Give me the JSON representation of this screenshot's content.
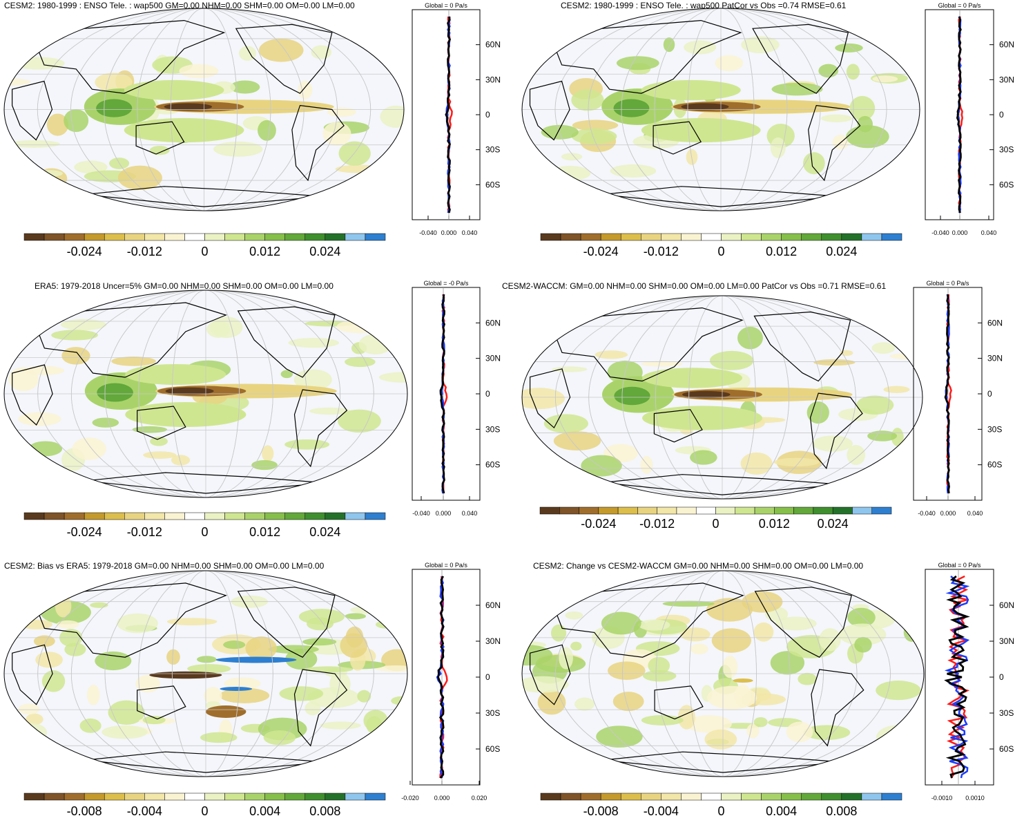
{
  "panels": [
    {
      "id": "p1",
      "title": "CESM2: 1980-1999 : ENSO Tele. : wap500 GM=0.00 NHM=0.00 SHM=0.00 OM=0.00 LM=0.00",
      "colorbar_labels": [
        "-0.024",
        "-0.012",
        "0",
        "0.012",
        "0.024"
      ],
      "side_title": "Global = 0 Pa/s",
      "lat_labels": [
        "60N",
        "30N",
        "0",
        "30S",
        "60S"
      ],
      "x_tick_labels": [
        "-0.040",
        "0.000",
        "0.040"
      ]
    },
    {
      "id": "p2",
      "title": "CESM2: 1980-1999 : ENSO Tele. : wap500 PatCor vs Obs =0.74 RMSE=0.61",
      "colorbar_labels": [
        "-0.024",
        "-0.012",
        "0",
        "0.012",
        "0.024"
      ],
      "side_title": "Global = 0 Pa/s",
      "lat_labels": [
        "60N",
        "30N",
        "0",
        "30S",
        "60S"
      ],
      "x_tick_labels": [
        "-0.040",
        "0.000",
        "0.040"
      ]
    },
    {
      "id": "p3",
      "title": "ERA5: 1979-2018 Uncer=5% GM=0.00 NHM=0.00 SHM=0.00 OM=0.00 LM=0.00",
      "colorbar_labels": [
        "-0.024",
        "-0.012",
        "0",
        "0.012",
        "0.024"
      ],
      "side_title": "Global = -0 Pa/s",
      "lat_labels": [
        "60N",
        "30N",
        "0",
        "30S",
        "60S"
      ],
      "x_tick_labels": [
        "-0.040",
        "0.000",
        "0.040"
      ]
    },
    {
      "id": "p4",
      "title": "CESM2-WACCM: GM=0.00 NHM=0.00 SHM=0.00 OM=0.00 LM=0.00 PatCor vs Obs =0.71 RMSE=0.61",
      "colorbar_labels": [
        "-0.024",
        "-0.012",
        "0",
        "0.012",
        "0.024"
      ],
      "side_title": "Global = 0 Pa/s",
      "lat_labels": [
        "60N",
        "30N",
        "0",
        "30S",
        "60S"
      ],
      "x_tick_labels": [
        "-0.040",
        "0.000",
        "0.040"
      ]
    },
    {
      "id": "p5",
      "title": "CESM2: Bias vs ERA5: 1979-2018 GM=0.00 NHM=0.00 SHM=0.00 OM=0.00 LM=0.00",
      "colorbar_labels": [
        "-0.008",
        "-0.004",
        "0",
        "0.004",
        "0.008"
      ],
      "side_title": "Global = 0 Pa/s",
      "lat_labels": [
        "60N",
        "30N",
        "0",
        "30S",
        "60S"
      ],
      "x_tick_labels": [
        "-0.020",
        "0.000",
        "0.020"
      ]
    },
    {
      "id": "p6",
      "title": "CESM2: Change vs CESM2-WACCM GM=0.00 NHM=0.00 SHM=0.00 OM=0.00 LM=0.00",
      "colorbar_labels": [
        "-0.008",
        "-0.004",
        "0",
        "0.004",
        "0.008"
      ],
      "side_title": "Global = 0 Pa/s",
      "lat_labels": [
        "60N",
        "30N",
        "0",
        "30S",
        "60S"
      ],
      "x_tick_labels": [
        "-0.0010",
        "0.0010"
      ]
    }
  ],
  "colors": {
    "palette": [
      "#5a3a1e",
      "#7e5428",
      "#a06e2c",
      "#c49a2c",
      "#dcbe4c",
      "#e8d480",
      "#f2e6a8",
      "#faf3d2",
      "#ffffff",
      "#eaf2c4",
      "#cfe690",
      "#a9d36a",
      "#86bf4a",
      "#62a83a",
      "#3f8f2e",
      "#24722a",
      "#8fc6ee",
      "#2e7fd0"
    ],
    "ocean": "#f4f6fb",
    "line_red": "#ff1a1a",
    "line_blue": "#1a3cff",
    "line_black": "#000000"
  }
}
